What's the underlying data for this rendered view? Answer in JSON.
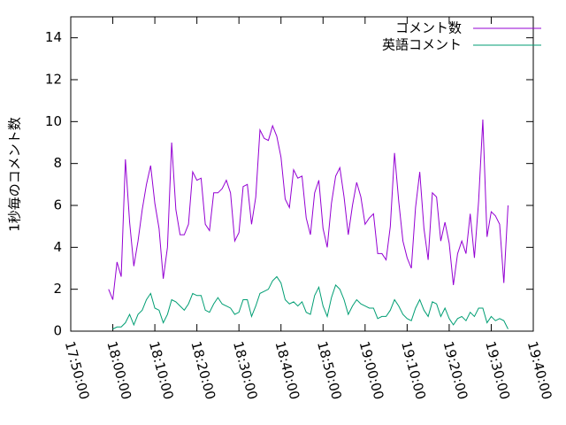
{
  "chart_data": {
    "type": "line",
    "ylabel": "1秒毎のコメント数",
    "x": [
      "17:59:00",
      "18:00:00",
      "18:01:00",
      "18:02:00",
      "18:03:00",
      "18:04:00",
      "18:05:00",
      "18:06:00",
      "18:07:00",
      "18:08:00",
      "18:09:00",
      "18:10:00",
      "18:11:00",
      "18:12:00",
      "18:13:00",
      "18:14:00",
      "18:15:00",
      "18:16:00",
      "18:17:00",
      "18:18:00",
      "18:19:00",
      "18:20:00",
      "18:21:00",
      "18:22:00",
      "18:23:00",
      "18:24:00",
      "18:25:00",
      "18:26:00",
      "18:27:00",
      "18:28:00",
      "18:29:00",
      "18:30:00",
      "18:31:00",
      "18:32:00",
      "18:33:00",
      "18:34:00",
      "18:35:00",
      "18:36:00",
      "18:37:00",
      "18:38:00",
      "18:39:00",
      "18:40:00",
      "18:41:00",
      "18:42:00",
      "18:43:00",
      "18:44:00",
      "18:45:00",
      "18:46:00",
      "18:47:00",
      "18:48:00",
      "18:49:00",
      "18:50:00",
      "18:51:00",
      "18:52:00",
      "18:53:00",
      "18:54:00",
      "18:55:00",
      "18:56:00",
      "18:57:00",
      "18:58:00",
      "18:59:00",
      "19:00:00",
      "19:01:00",
      "19:02:00",
      "19:03:00",
      "19:04:00",
      "19:05:00",
      "19:06:00",
      "19:07:00",
      "19:08:00",
      "19:09:00",
      "19:10:00",
      "19:11:00",
      "19:12:00",
      "19:13:00",
      "19:14:00",
      "19:15:00",
      "19:16:00",
      "19:17:00",
      "19:18:00",
      "19:19:00",
      "19:20:00",
      "19:21:00",
      "19:22:00",
      "19:23:00",
      "19:24:00",
      "19:25:00",
      "19:26:00",
      "19:27:00",
      "19:28:00",
      "19:29:00",
      "19:30:00",
      "19:31:00",
      "19:32:00",
      "19:33:00",
      "19:34:00"
    ],
    "series": [
      {
        "name": "コメント数",
        "color": "#9400d3",
        "values": [
          2.0,
          1.5,
          3.3,
          2.6,
          8.2,
          5.2,
          3.1,
          4.3,
          5.8,
          7.0,
          7.9,
          6.1,
          4.9,
          2.5,
          4.0,
          9.0,
          5.8,
          4.6,
          4.6,
          5.1,
          7.6,
          7.2,
          7.3,
          5.1,
          4.8,
          6.6,
          6.6,
          6.8,
          7.2,
          6.6,
          4.3,
          4.7,
          6.9,
          7.0,
          5.1,
          6.4,
          9.6,
          9.2,
          9.1,
          9.8,
          9.3,
          8.3,
          6.3,
          5.9,
          7.7,
          7.3,
          7.4,
          5.4,
          4.6,
          6.6,
          7.2,
          4.9,
          4.0,
          6.1,
          7.4,
          7.8,
          6.4,
          4.6,
          6.0,
          7.1,
          6.4,
          5.1,
          5.4,
          5.6,
          3.7,
          3.7,
          3.4,
          5.0,
          8.5,
          6.2,
          4.3,
          3.5,
          3.0,
          5.9,
          7.6,
          4.9,
          3.4,
          6.6,
          6.4,
          4.3,
          5.2,
          4.2,
          2.2,
          3.7,
          4.3,
          3.7,
          5.6,
          3.5,
          6.2,
          10.1,
          4.5,
          5.7,
          5.5,
          5.1,
          2.3,
          6.0
        ]
      },
      {
        "name": "英語コメント",
        "color": "#009e73",
        "values": [
          null,
          0.1,
          0.2,
          0.2,
          0.4,
          0.8,
          0.3,
          0.8,
          1.0,
          1.5,
          1.8,
          1.1,
          1.0,
          0.4,
          0.8,
          1.5,
          1.4,
          1.2,
          1.0,
          1.3,
          1.8,
          1.7,
          1.7,
          1.0,
          0.9,
          1.3,
          1.6,
          1.3,
          1.2,
          1.1,
          0.8,
          0.9,
          1.5,
          1.5,
          0.7,
          1.2,
          1.8,
          1.9,
          2.0,
          2.4,
          2.6,
          2.3,
          1.5,
          1.3,
          1.4,
          1.2,
          1.4,
          0.9,
          0.8,
          1.7,
          2.1,
          1.2,
          0.7,
          1.6,
          2.2,
          2.0,
          1.5,
          0.8,
          1.2,
          1.5,
          1.3,
          1.2,
          1.1,
          1.1,
          0.6,
          0.7,
          0.7,
          1.0,
          1.5,
          1.2,
          0.8,
          0.6,
          0.5,
          1.1,
          1.5,
          1.0,
          0.7,
          1.4,
          1.3,
          0.7,
          1.1,
          0.6,
          0.3,
          0.6,
          0.7,
          0.5,
          0.9,
          0.7,
          1.1,
          1.1,
          0.4,
          0.7,
          0.5,
          0.6,
          0.5,
          0.1
        ]
      }
    ],
    "xlim": [
      "17:50:00",
      "19:40:00"
    ],
    "xticks": [
      "17:50:00",
      "18:00:00",
      "18:10:00",
      "18:20:00",
      "18:30:00",
      "18:40:00",
      "18:50:00",
      "19:00:00",
      "19:10:00",
      "19:20:00",
      "19:30:00",
      "19:40:00"
    ],
    "ylim": [
      0,
      15
    ],
    "yticks": [
      0,
      2,
      4,
      6,
      8,
      10,
      12,
      14
    ],
    "legend": "top-right"
  }
}
